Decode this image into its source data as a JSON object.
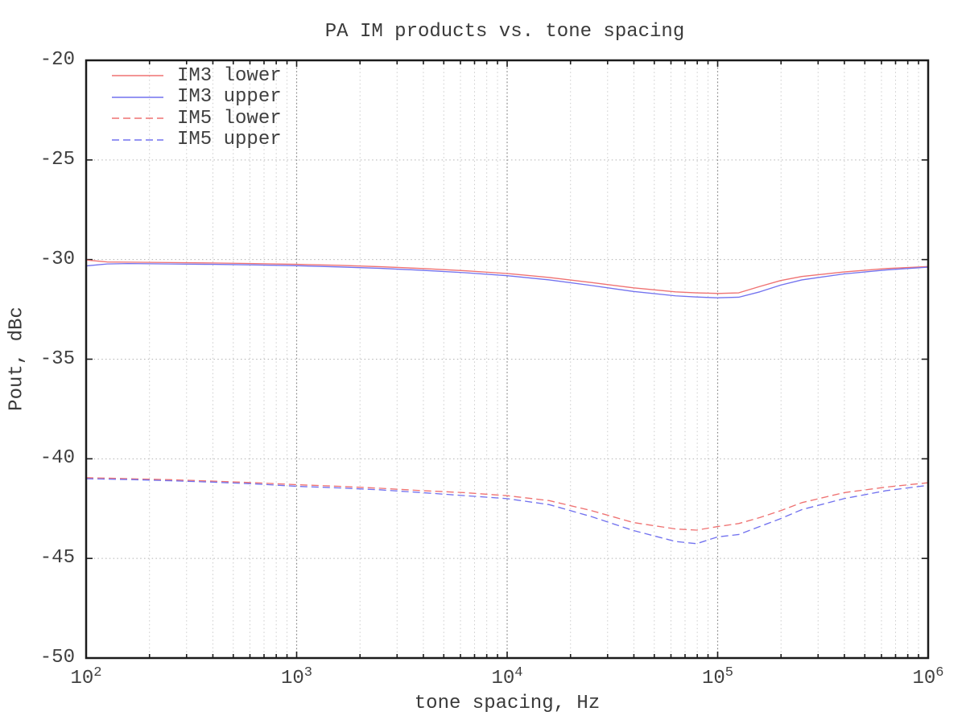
{
  "chart_data": {
    "type": "line",
    "title": "PA IM products vs. tone spacing",
    "xlabel": "tone spacing, Hz",
    "ylabel": "Pout, dBc",
    "x_scale": "log10",
    "xlim_exp": [
      2,
      6
    ],
    "ylim": [
      -50,
      -20
    ],
    "y_ticks": [
      -20,
      -25,
      -30,
      -35,
      -40,
      -45,
      -50
    ],
    "x_tick_base": "10",
    "x_tick_exponents": [
      2,
      3,
      4,
      5,
      6
    ],
    "grid": "dotted gridlines; horizontal at 5 dB steps, vertical at log decades (dark) and minor log ticks (light)",
    "legend_position": "top-left inside plot",
    "x_log10_hz": [
      2.0,
      2.1,
      2.2,
      2.4,
      2.6,
      2.8,
      3.0,
      3.2,
      3.4,
      3.6,
      3.8,
      4.0,
      4.2,
      4.4,
      4.6,
      4.8,
      4.9,
      5.0,
      5.1,
      5.2,
      5.3,
      5.4,
      5.6,
      5.8,
      6.0
    ],
    "series": [
      {
        "name": "IM3 lower",
        "color": "#ef7272",
        "line_style": "solid",
        "dasharray": "none",
        "values": [
          -30.02,
          -30.12,
          -30.13,
          -30.15,
          -30.17,
          -30.2,
          -30.24,
          -30.29,
          -30.36,
          -30.45,
          -30.56,
          -30.7,
          -30.9,
          -31.15,
          -31.42,
          -31.62,
          -31.67,
          -31.7,
          -31.67,
          -31.35,
          -31.05,
          -30.85,
          -30.62,
          -30.45,
          -30.35
        ]
      },
      {
        "name": "IM3 upper",
        "color": "#7272ef",
        "line_style": "solid",
        "dasharray": "none",
        "values": [
          -30.32,
          -30.22,
          -30.2,
          -30.22,
          -30.24,
          -30.27,
          -30.31,
          -30.37,
          -30.44,
          -30.54,
          -30.66,
          -30.81,
          -31.02,
          -31.3,
          -31.6,
          -31.82,
          -31.88,
          -31.92,
          -31.89,
          -31.62,
          -31.28,
          -31.02,
          -30.72,
          -30.52,
          -30.38
        ]
      },
      {
        "name": "IM5 lower",
        "color": "#ef7272",
        "line_style": "dashed",
        "dasharray": "9 5",
        "values": [
          -40.95,
          -40.97,
          -41.0,
          -41.05,
          -41.12,
          -41.2,
          -41.3,
          -41.38,
          -41.48,
          -41.6,
          -41.7,
          -41.85,
          -42.1,
          -42.6,
          -43.2,
          -43.52,
          -43.58,
          -43.4,
          -43.25,
          -42.95,
          -42.6,
          -42.2,
          -41.7,
          -41.42,
          -41.2
        ]
      },
      {
        "name": "IM5 upper",
        "color": "#7272ef",
        "line_style": "dashed",
        "dasharray": "9 5",
        "values": [
          -41.0,
          -41.02,
          -41.04,
          -41.1,
          -41.17,
          -41.26,
          -41.38,
          -41.46,
          -41.56,
          -41.7,
          -41.85,
          -42.0,
          -42.3,
          -42.9,
          -43.6,
          -44.15,
          -44.26,
          -43.92,
          -43.8,
          -43.4,
          -43.0,
          -42.55,
          -42.0,
          -41.6,
          -41.33
        ]
      }
    ]
  }
}
